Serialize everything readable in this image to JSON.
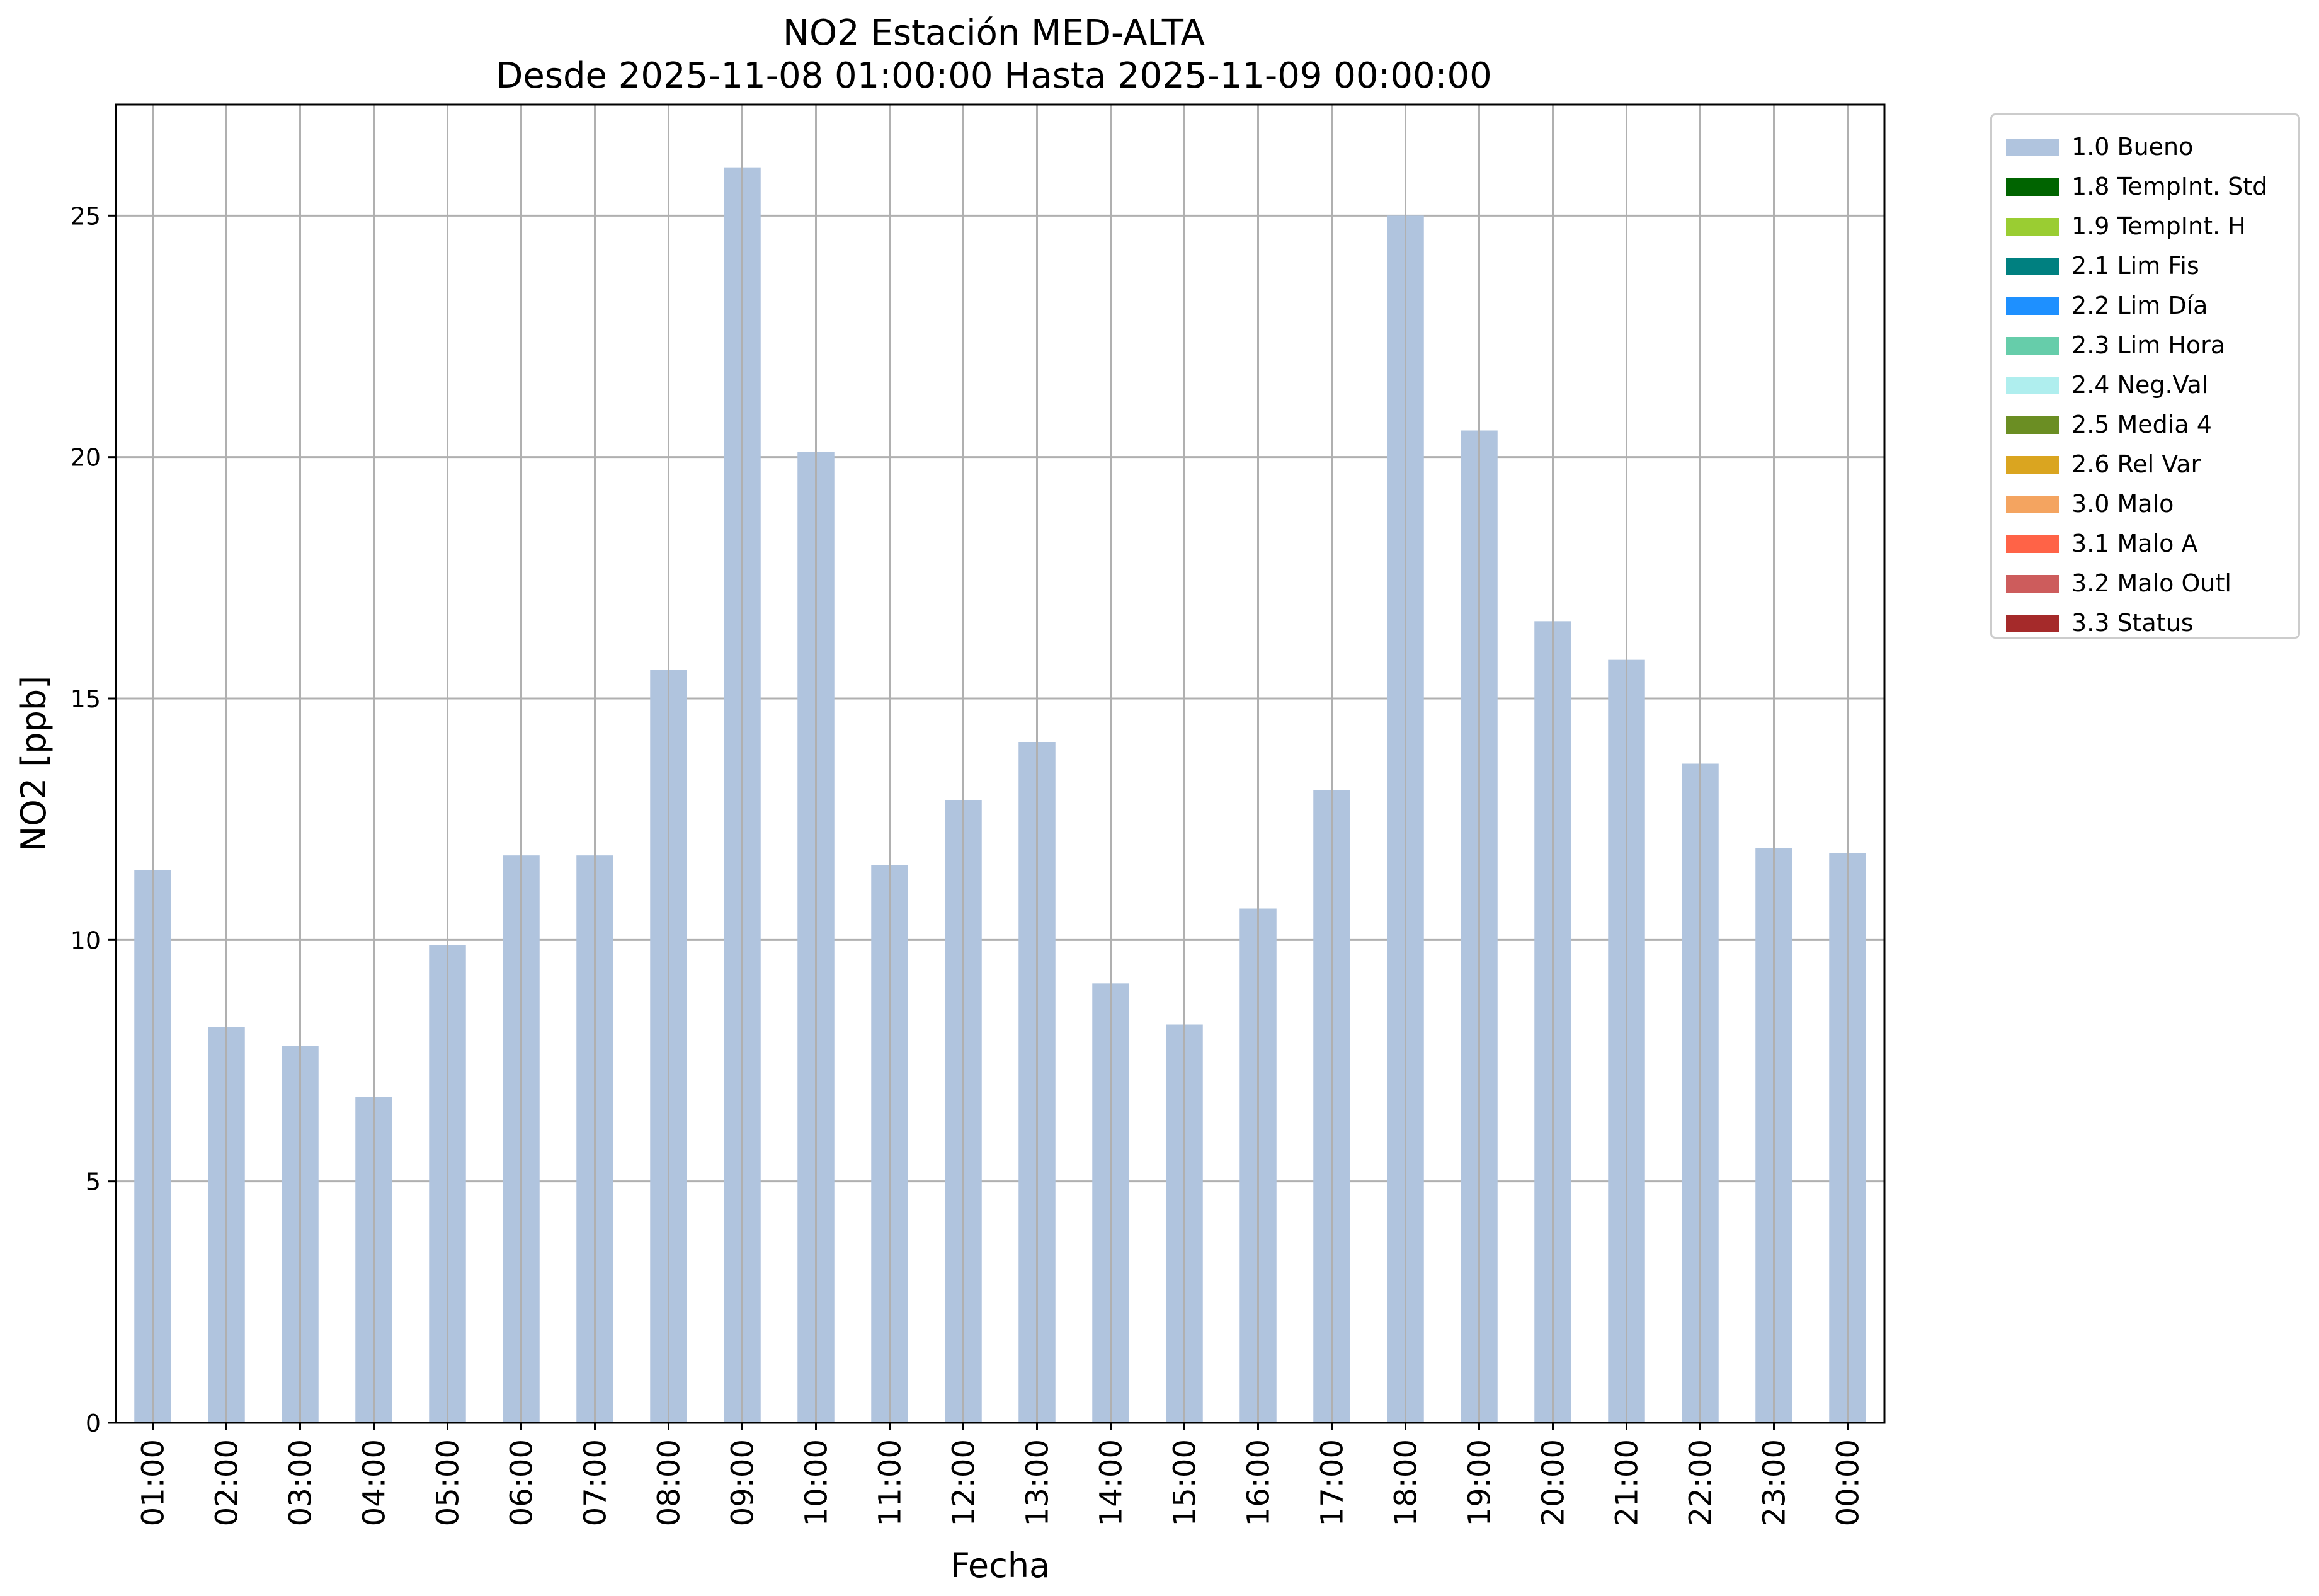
{
  "title": "NO2 Estación MED-ALTA",
  "subtitle": "Desde 2025-11-08 01:00:00 Hasta 2025-11-09 00:00:00",
  "legend": [
    {
      "label": "1.0 Bueno",
      "color": "#b0c4de"
    },
    {
      "label": "1.8 TempInt. Std",
      "color": "#006400"
    },
    {
      "label": "1.9 TempInt. H",
      "color": "#9acd32"
    },
    {
      "label": "2.1 Lim Fis",
      "color": "#008080"
    },
    {
      "label": "2.2 Lim Día",
      "color": "#1e90ff"
    },
    {
      "label": "2.3 Lim Hora",
      "color": "#66cdaa"
    },
    {
      "label": "2.4 Neg.Val",
      "color": "#afeeee"
    },
    {
      "label": "2.5 Media 4",
      "color": "#6b8e23"
    },
    {
      "label": "2.6 Rel Var",
      "color": "#daa520"
    },
    {
      "label": "3.0 Malo",
      "color": "#f4a460"
    },
    {
      "label": "3.1 Malo A",
      "color": "#ff6347"
    },
    {
      "label": "3.2 Malo Outl",
      "color": "#cd5c5c"
    },
    {
      "label": "3.3 Status",
      "color": "#a52a2a"
    }
  ],
  "chart_data": {
    "type": "bar",
    "title": "NO2 Estación MED-ALTA",
    "subtitle": "Desde 2025-11-08 01:00:00 Hasta 2025-11-09 00:00:00",
    "xlabel": "Fecha",
    "ylabel": "NO2 [ppb]",
    "ylim": [
      0,
      27.3
    ],
    "yticks": [
      0,
      5,
      10,
      15,
      20,
      25
    ],
    "grid": true,
    "legend_position": "outside-top-right",
    "categories": [
      "01:00",
      "02:00",
      "03:00",
      "04:00",
      "05:00",
      "06:00",
      "07:00",
      "08:00",
      "09:00",
      "10:00",
      "11:00",
      "12:00",
      "13:00",
      "14:00",
      "15:00",
      "16:00",
      "17:00",
      "18:00",
      "19:00",
      "20:00",
      "21:00",
      "22:00",
      "23:00",
      "00:00"
    ],
    "series": [
      {
        "name": "1.0 Bueno",
        "color": "#b0c4de",
        "values": [
          11.45,
          8.2,
          7.8,
          6.75,
          9.9,
          11.75,
          11.75,
          15.6,
          26.0,
          20.1,
          11.55,
          12.9,
          14.1,
          9.1,
          8.25,
          10.65,
          13.1,
          25.0,
          20.55,
          16.6,
          15.8,
          13.65,
          11.9,
          11.8
        ]
      }
    ]
  }
}
